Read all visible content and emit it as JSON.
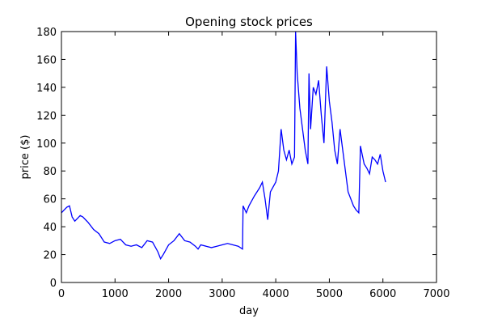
{
  "chart_data": {
    "type": "line",
    "title": "Opening stock prices",
    "xlabel": "day",
    "ylabel": "price ($)",
    "x": [
      0,
      50,
      100,
      150,
      200,
      250,
      300,
      350,
      400,
      450,
      500,
      600,
      700,
      800,
      900,
      1000,
      1100,
      1200,
      1300,
      1400,
      1500,
      1600,
      1700,
      1800,
      1850,
      1900,
      2000,
      2100,
      2200,
      2300,
      2400,
      2500,
      2550,
      2600,
      2700,
      2800,
      2900,
      3000,
      3100,
      3200,
      3300,
      3380,
      3390,
      3450,
      3500,
      3600,
      3700,
      3750,
      3800,
      3850,
      3900,
      4000,
      4050,
      4100,
      4150,
      4200,
      4250,
      4300,
      4350,
      4370,
      4400,
      4450,
      4500,
      4550,
      4600,
      4620,
      4650,
      4700,
      4750,
      4800,
      4850,
      4900,
      4950,
      5000,
      5050,
      5100,
      5150,
      5200,
      5250,
      5300,
      5350,
      5400,
      5450,
      5500,
      5550,
      5580,
      5650,
      5700,
      5750,
      5800,
      5850,
      5900,
      5950,
      6000,
      6050
    ],
    "series": [
      {
        "name": "price",
        "color": "#0000ff",
        "values": [
          50,
          52,
          54,
          55,
          47,
          44,
          46,
          48,
          47,
          45,
          43,
          38,
          35,
          29,
          28,
          30,
          31,
          27,
          26,
          27,
          25,
          30,
          29,
          22,
          17,
          20,
          27,
          30,
          35,
          30,
          29,
          26,
          24,
          27,
          26,
          25,
          26,
          27,
          28,
          27,
          26,
          24,
          55,
          50,
          55,
          62,
          68,
          72,
          60,
          45,
          65,
          72,
          80,
          110,
          95,
          88,
          95,
          85,
          90,
          180,
          150,
          125,
          110,
          95,
          85,
          150,
          110,
          140,
          135,
          145,
          120,
          100,
          155,
          130,
          115,
          95,
          85,
          110,
          95,
          80,
          65,
          60,
          55,
          52,
          50,
          98,
          85,
          82,
          78,
          90,
          88,
          85,
          92,
          80,
          72
        ]
      }
    ],
    "xlim": [
      0,
      7000
    ],
    "xticks": [
      0,
      1000,
      2000,
      3000,
      4000,
      5000,
      6000,
      7000
    ],
    "ylim": [
      0,
      180
    ],
    "yticks": [
      0,
      20,
      40,
      60,
      80,
      100,
      120,
      140,
      160,
      180
    ]
  }
}
